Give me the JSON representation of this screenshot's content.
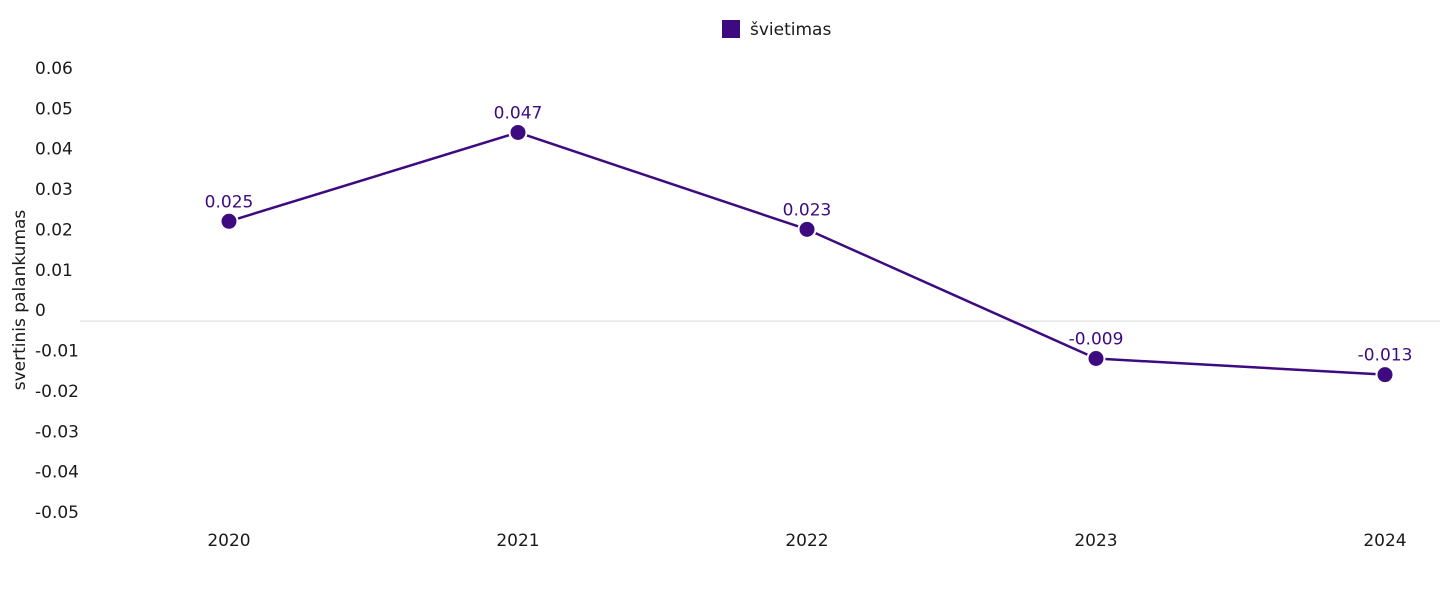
{
  "colors": {
    "series": "#3d0a80",
    "zero_line": "#d9d9d9",
    "text": "#1a1a1a"
  },
  "chart_data": {
    "type": "line",
    "x": [
      "2020",
      "2021",
      "2022",
      "2023",
      "2024"
    ],
    "series": [
      {
        "name": "švietimas",
        "values": [
          0.025,
          0.047,
          0.023,
          -0.009,
          -0.013
        ],
        "labels": [
          "0.025",
          "0.047",
          "0.023",
          "-0.009",
          "-0.013"
        ]
      }
    ],
    "ylabel": "svertinis palankumas",
    "xlabel": "",
    "ylim": [
      -0.05,
      0.06
    ],
    "yticks": [
      "0.06",
      "0.05",
      "0.04",
      "0.03",
      "0.02",
      "0.01",
      "0",
      "-0.01",
      "-0.02",
      "-0.03",
      "-0.04",
      "-0.05"
    ],
    "grid": false,
    "zero_line": true,
    "legend": "top-center"
  }
}
